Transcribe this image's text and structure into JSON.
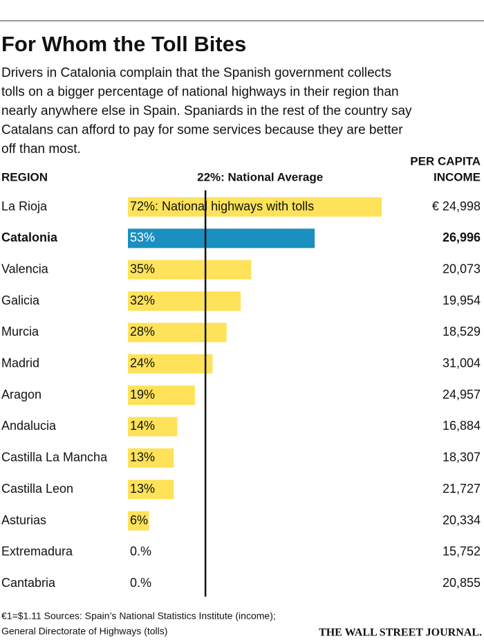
{
  "chart_data": {
    "type": "bar",
    "title": "For Whom the Toll Bites",
    "subtitle_lines": [
      "Drivers in Catalonia complain that the Spanish government collects",
      "tolls on a bigger percentage of national highways in their region than",
      "nearly anywhere else in Spain. Spaniards in the rest of the country say",
      "Catalans can afford to pay for some services because they are better",
      "off than most."
    ],
    "category_header": "REGION",
    "income_header": [
      "PER CAPITA",
      "INCOME"
    ],
    "categories": [
      "La Rioja",
      "Catalonia",
      "Valencia",
      "Galicia",
      "Murcia",
      "Madrid",
      "Aragon",
      "Andalucia",
      "Castilla La Mancha",
      "Castilla Leon",
      "Asturias",
      "Extremadura",
      "Cantabria"
    ],
    "values": [
      72,
      53,
      35,
      32,
      28,
      24,
      19,
      14,
      13,
      13,
      6,
      0,
      0
    ],
    "value_labels": [
      "72%: National highways with tolls",
      "53%",
      "35%",
      "32%",
      "28%",
      "24%",
      "19%",
      "14%",
      "13%",
      "13%",
      "6%",
      "0.%",
      "0.%"
    ],
    "colors": [
      "#fde25a",
      "#1a8fc0",
      "#fde25a",
      "#fde25a",
      "#fde25a",
      "#fde25a",
      "#fde25a",
      "#fde25a",
      "#fde25a",
      "#fde25a",
      "#fde25a",
      "#fde25a",
      "#fde25a"
    ],
    "emphasis": [
      false,
      true,
      false,
      false,
      false,
      false,
      false,
      false,
      false,
      false,
      false,
      false,
      false
    ],
    "income": [
      24998,
      26996,
      20073,
      19954,
      18529,
      31004,
      24957,
      16884,
      18307,
      21727,
      20334,
      15752,
      20855
    ],
    "income_labels": [
      "€ 24,998",
      "26,996",
      "20,073",
      "19,954",
      "18,529",
      "31,004",
      "24,957",
      "16,884",
      "18,307",
      "21,727",
      "20,334",
      "15,752",
      "20,855"
    ],
    "reference_line": {
      "value": 22,
      "label": "22%: National Average"
    },
    "xlim": [
      0,
      72
    ],
    "footnote_lines": [
      "€1=$1.11   Sources: Spain’s National Statistics Institute (income);",
      "General Directorate of Highways (tolls)"
    ],
    "source": "THE WALL STREET JOURNAL."
  }
}
